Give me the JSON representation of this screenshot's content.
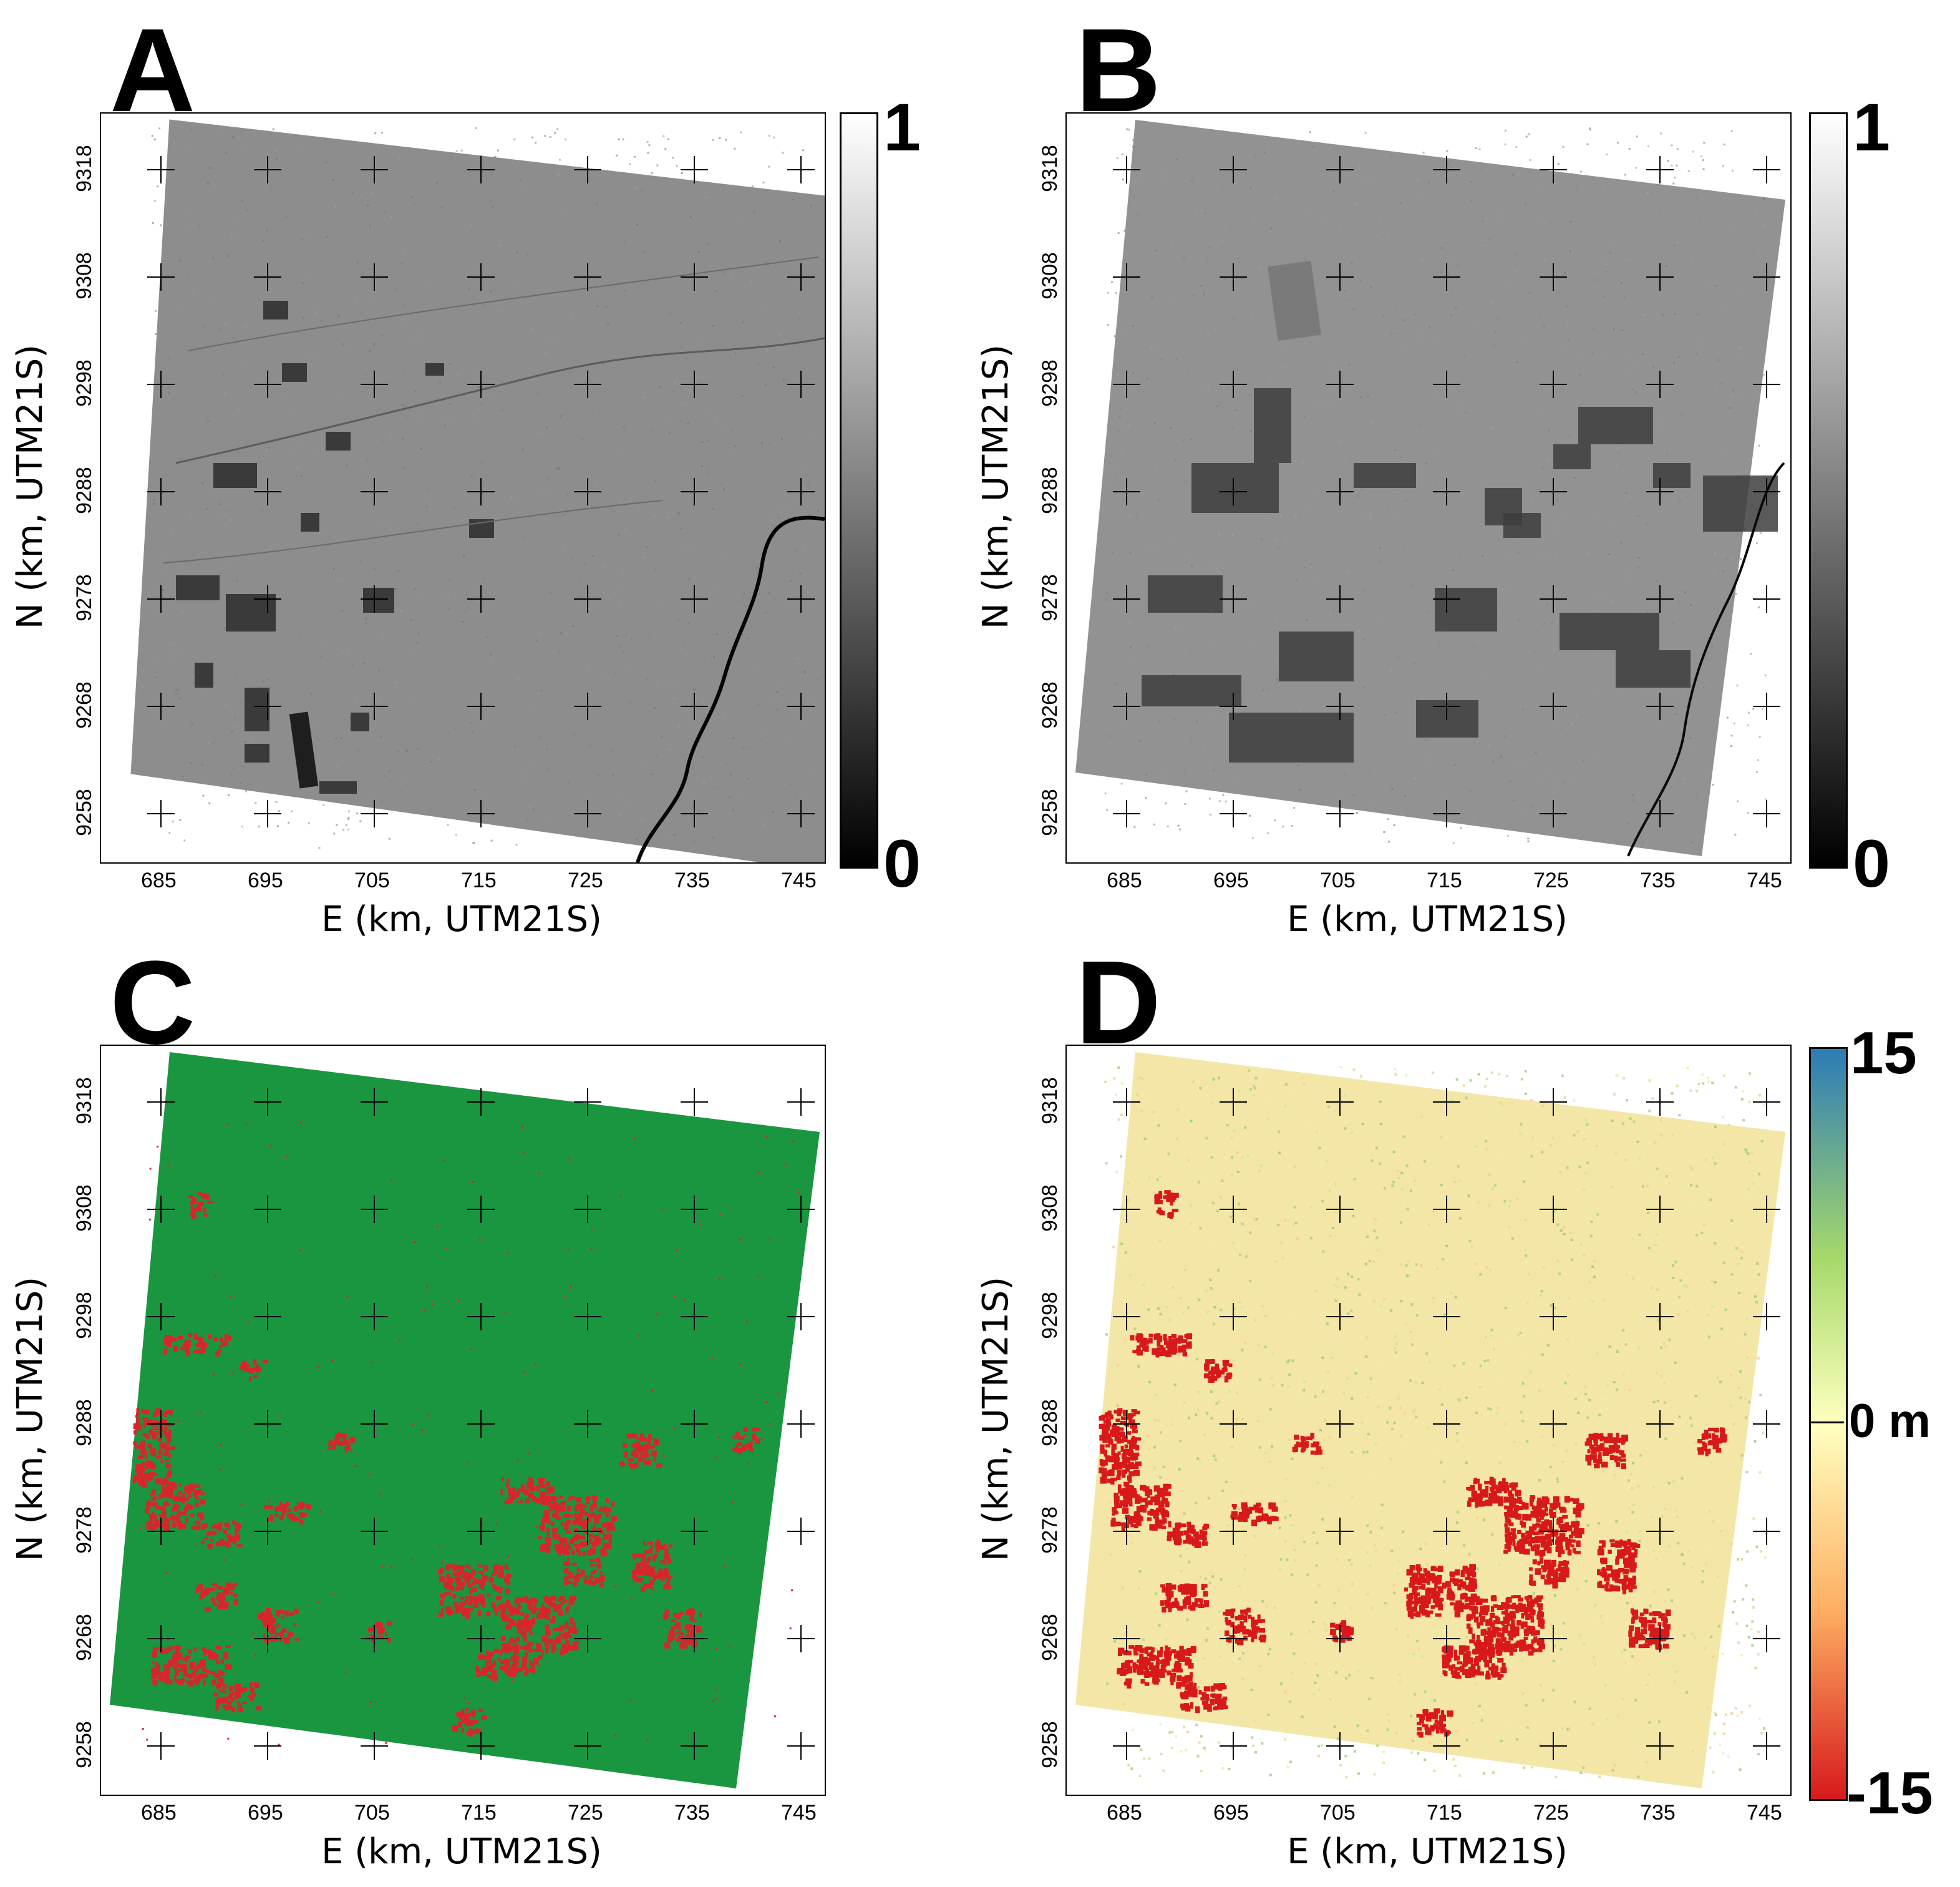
{
  "panels": [
    {
      "letter": "A",
      "cbar_top": "1",
      "cbar_bottom": "0",
      "cbar_type": "gray"
    },
    {
      "letter": "B",
      "cbar_top": "1",
      "cbar_bottom": "0",
      "cbar_type": "gray"
    },
    {
      "letter": "C"
    },
    {
      "letter": "D",
      "cbar_top": "15",
      "cbar_mid": "0 m",
      "cbar_bottom": "-15",
      "cbar_type": "diverging"
    }
  ],
  "axes": {
    "xlabel": "E (km, UTM21S)",
    "ylabel": "N (km, UTM21S)",
    "xticks": [
      "685",
      "695",
      "705",
      "715",
      "725",
      "735",
      "745"
    ],
    "yticks": [
      "9318",
      "9308",
      "9298",
      "9288",
      "9278",
      "9268",
      "9258"
    ]
  },
  "colors": {
    "forest_green": "#1b9640",
    "deforest_red": "#d7262b",
    "sar_gray": "#8a8a8a",
    "cbar_low": "#d7191c",
    "cbar_mid": "#ffffbf",
    "cbar_high": "#2c7bb6"
  }
}
